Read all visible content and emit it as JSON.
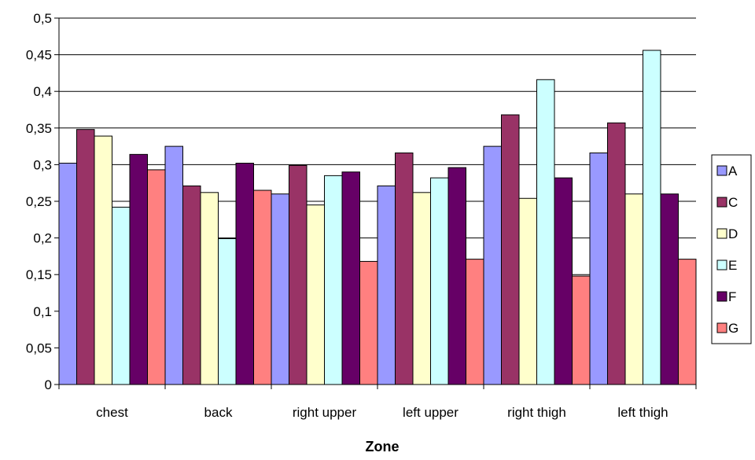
{
  "chart_data": {
    "type": "bar",
    "title": "",
    "xlabel": "Zone",
    "ylabel": "",
    "categories": [
      "chest",
      "back",
      "right upper",
      "left upper",
      "right thigh",
      "left thigh"
    ],
    "ylim": [
      0,
      0.5
    ],
    "yticks": [
      0,
      0.05,
      0.1,
      0.15,
      0.2,
      0.25,
      0.3,
      0.35,
      0.4,
      0.45,
      0.5
    ],
    "ytick_labels": [
      "0",
      "0,05",
      "0,1",
      "0,15",
      "0,2",
      "0,25",
      "0,3",
      "0,35",
      "0,4",
      "0,45",
      "0,5"
    ],
    "grid": true,
    "legend_position": "right",
    "series": [
      {
        "name": "A",
        "color": "#9999FF",
        "values": [
          0.302,
          0.325,
          0.26,
          0.271,
          0.325,
          0.316
        ]
      },
      {
        "name": "C",
        "color": "#993366",
        "values": [
          0.348,
          0.271,
          0.299,
          0.316,
          0.368,
          0.357
        ]
      },
      {
        "name": "D",
        "color": "#FFFFCC",
        "values": [
          0.339,
          0.262,
          0.245,
          0.262,
          0.254,
          0.26
        ]
      },
      {
        "name": "E",
        "color": "#CCFFFF",
        "values": [
          0.242,
          0.199,
          0.285,
          0.282,
          0.416,
          0.456
        ]
      },
      {
        "name": "F",
        "color": "#660066",
        "values": [
          0.314,
          0.302,
          0.29,
          0.296,
          0.282,
          0.26
        ]
      },
      {
        "name": "G",
        "color": "#FF8080",
        "values": [
          0.293,
          0.265,
          0.168,
          0.171,
          0.148,
          0.171
        ]
      }
    ]
  }
}
